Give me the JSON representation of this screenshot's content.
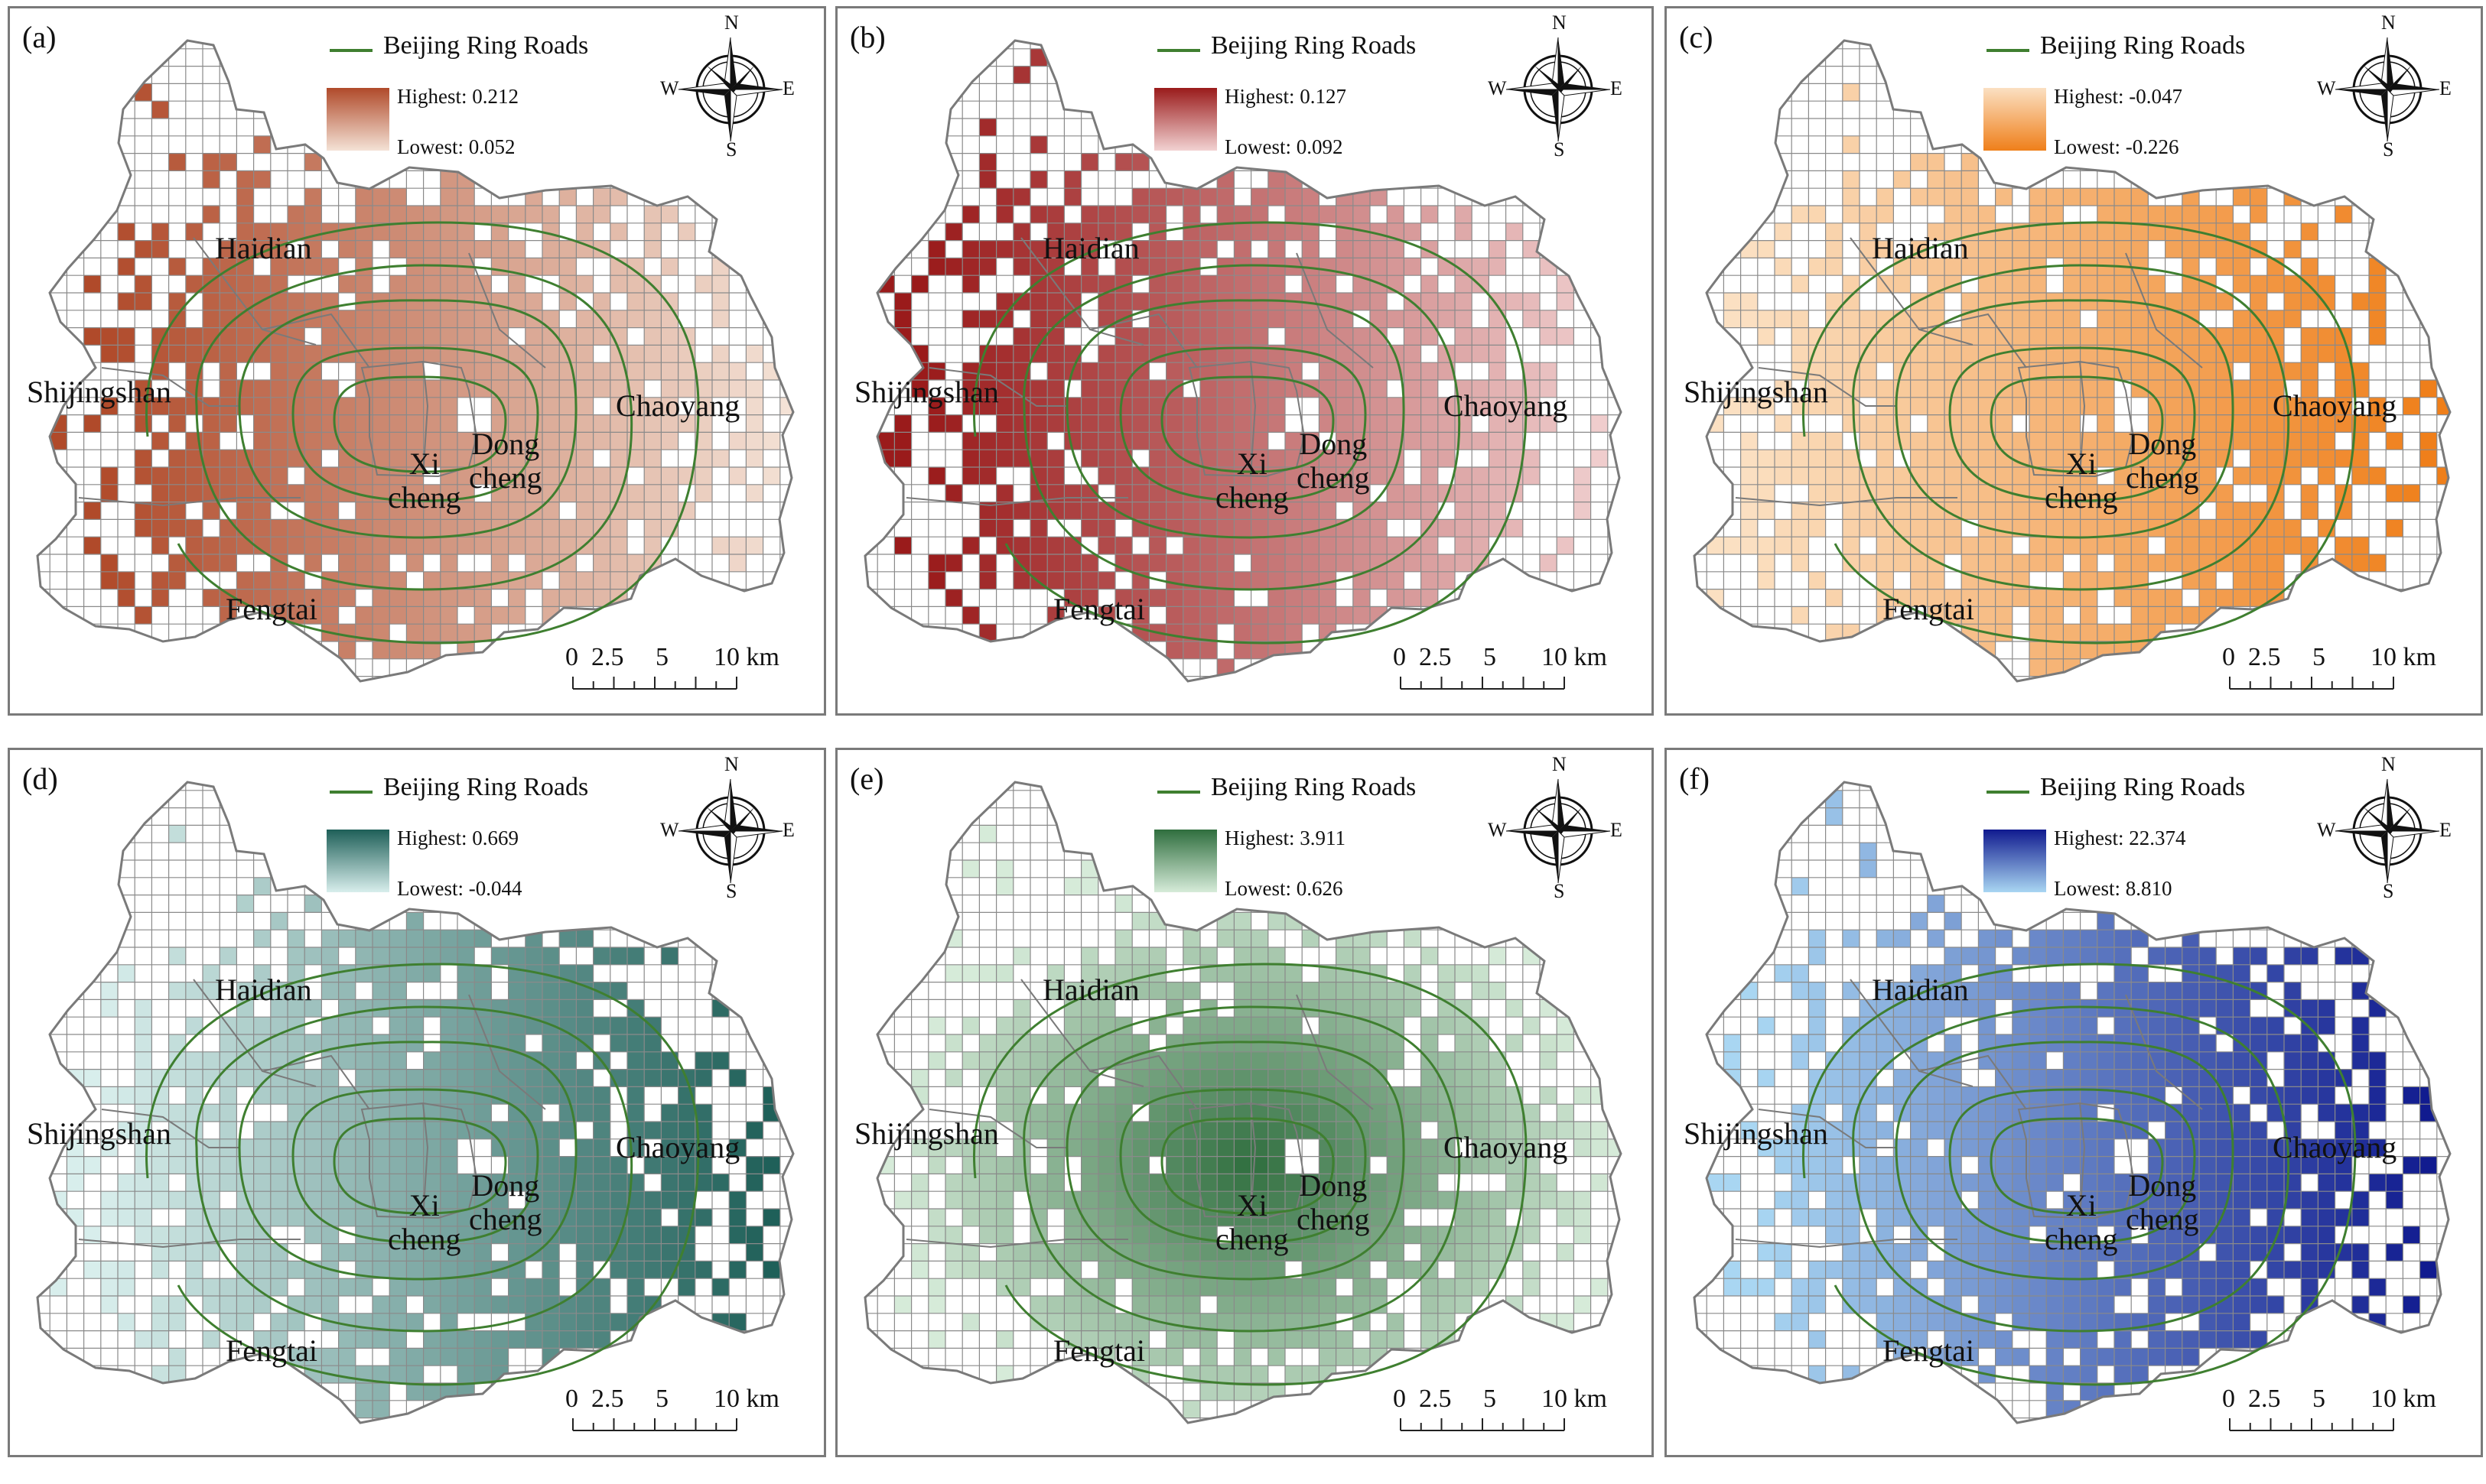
{
  "legend": {
    "road_label": "Beijing Ring Roads",
    "highest_prefix": "Highest: ",
    "lowest_prefix": "Lowest: "
  },
  "districts": {
    "haidian": "Haidian",
    "shijingshan": "Shijingshan",
    "chaoyang": "Chaoyang",
    "xi_line1": "Xi",
    "xi_line2": "cheng",
    "dong_line1": "Dong",
    "dong_line2": "cheng",
    "fengtai": "Fengtai"
  },
  "scale_bar": {
    "ticks": [
      "0",
      "2.5",
      "5",
      "10 km"
    ]
  },
  "compass": {
    "n": "N",
    "s": "S",
    "e": "E",
    "w": "W"
  },
  "colors": {
    "ring_road": "#3f7f30",
    "grid_line": "#8a8a8a",
    "boundary": "#7a7a7a"
  },
  "panels": [
    {
      "label": "(a)",
      "highest": "Highest: 0.212",
      "lowest": "Lowest: 0.052",
      "high_color": "#b04a2a",
      "low_color": "#f4e2d6",
      "trend": "west"
    },
    {
      "label": "(b)",
      "highest": "Highest: 0.127",
      "lowest": "Lowest: 0.092",
      "high_color": "#9a1b1b",
      "low_color": "#f2d2d2",
      "trend": "west"
    },
    {
      "label": "(c)",
      "highest": "Highest: -0.047",
      "lowest": "Lowest: -0.226",
      "high_color": "#fbe0c2",
      "low_color": "#ef7f1a",
      "trend": "east"
    },
    {
      "label": "(d)",
      "highest": "Highest: 0.669",
      "lowest": "Lowest: -0.044",
      "high_color": "#1e5f58",
      "low_color": "#d8eeec",
      "trend": "east"
    },
    {
      "label": "(e)",
      "highest": "Highest: 3.911",
      "lowest": "Lowest: 0.626",
      "high_color": "#2f6e3e",
      "low_color": "#d6ebd9",
      "trend": "center"
    },
    {
      "label": "(f)",
      "highest": "Highest: 22.374",
      "lowest": "Lowest: 8.810",
      "high_color": "#101a8f",
      "low_color": "#a9d6f2",
      "trend": "east"
    }
  ]
}
